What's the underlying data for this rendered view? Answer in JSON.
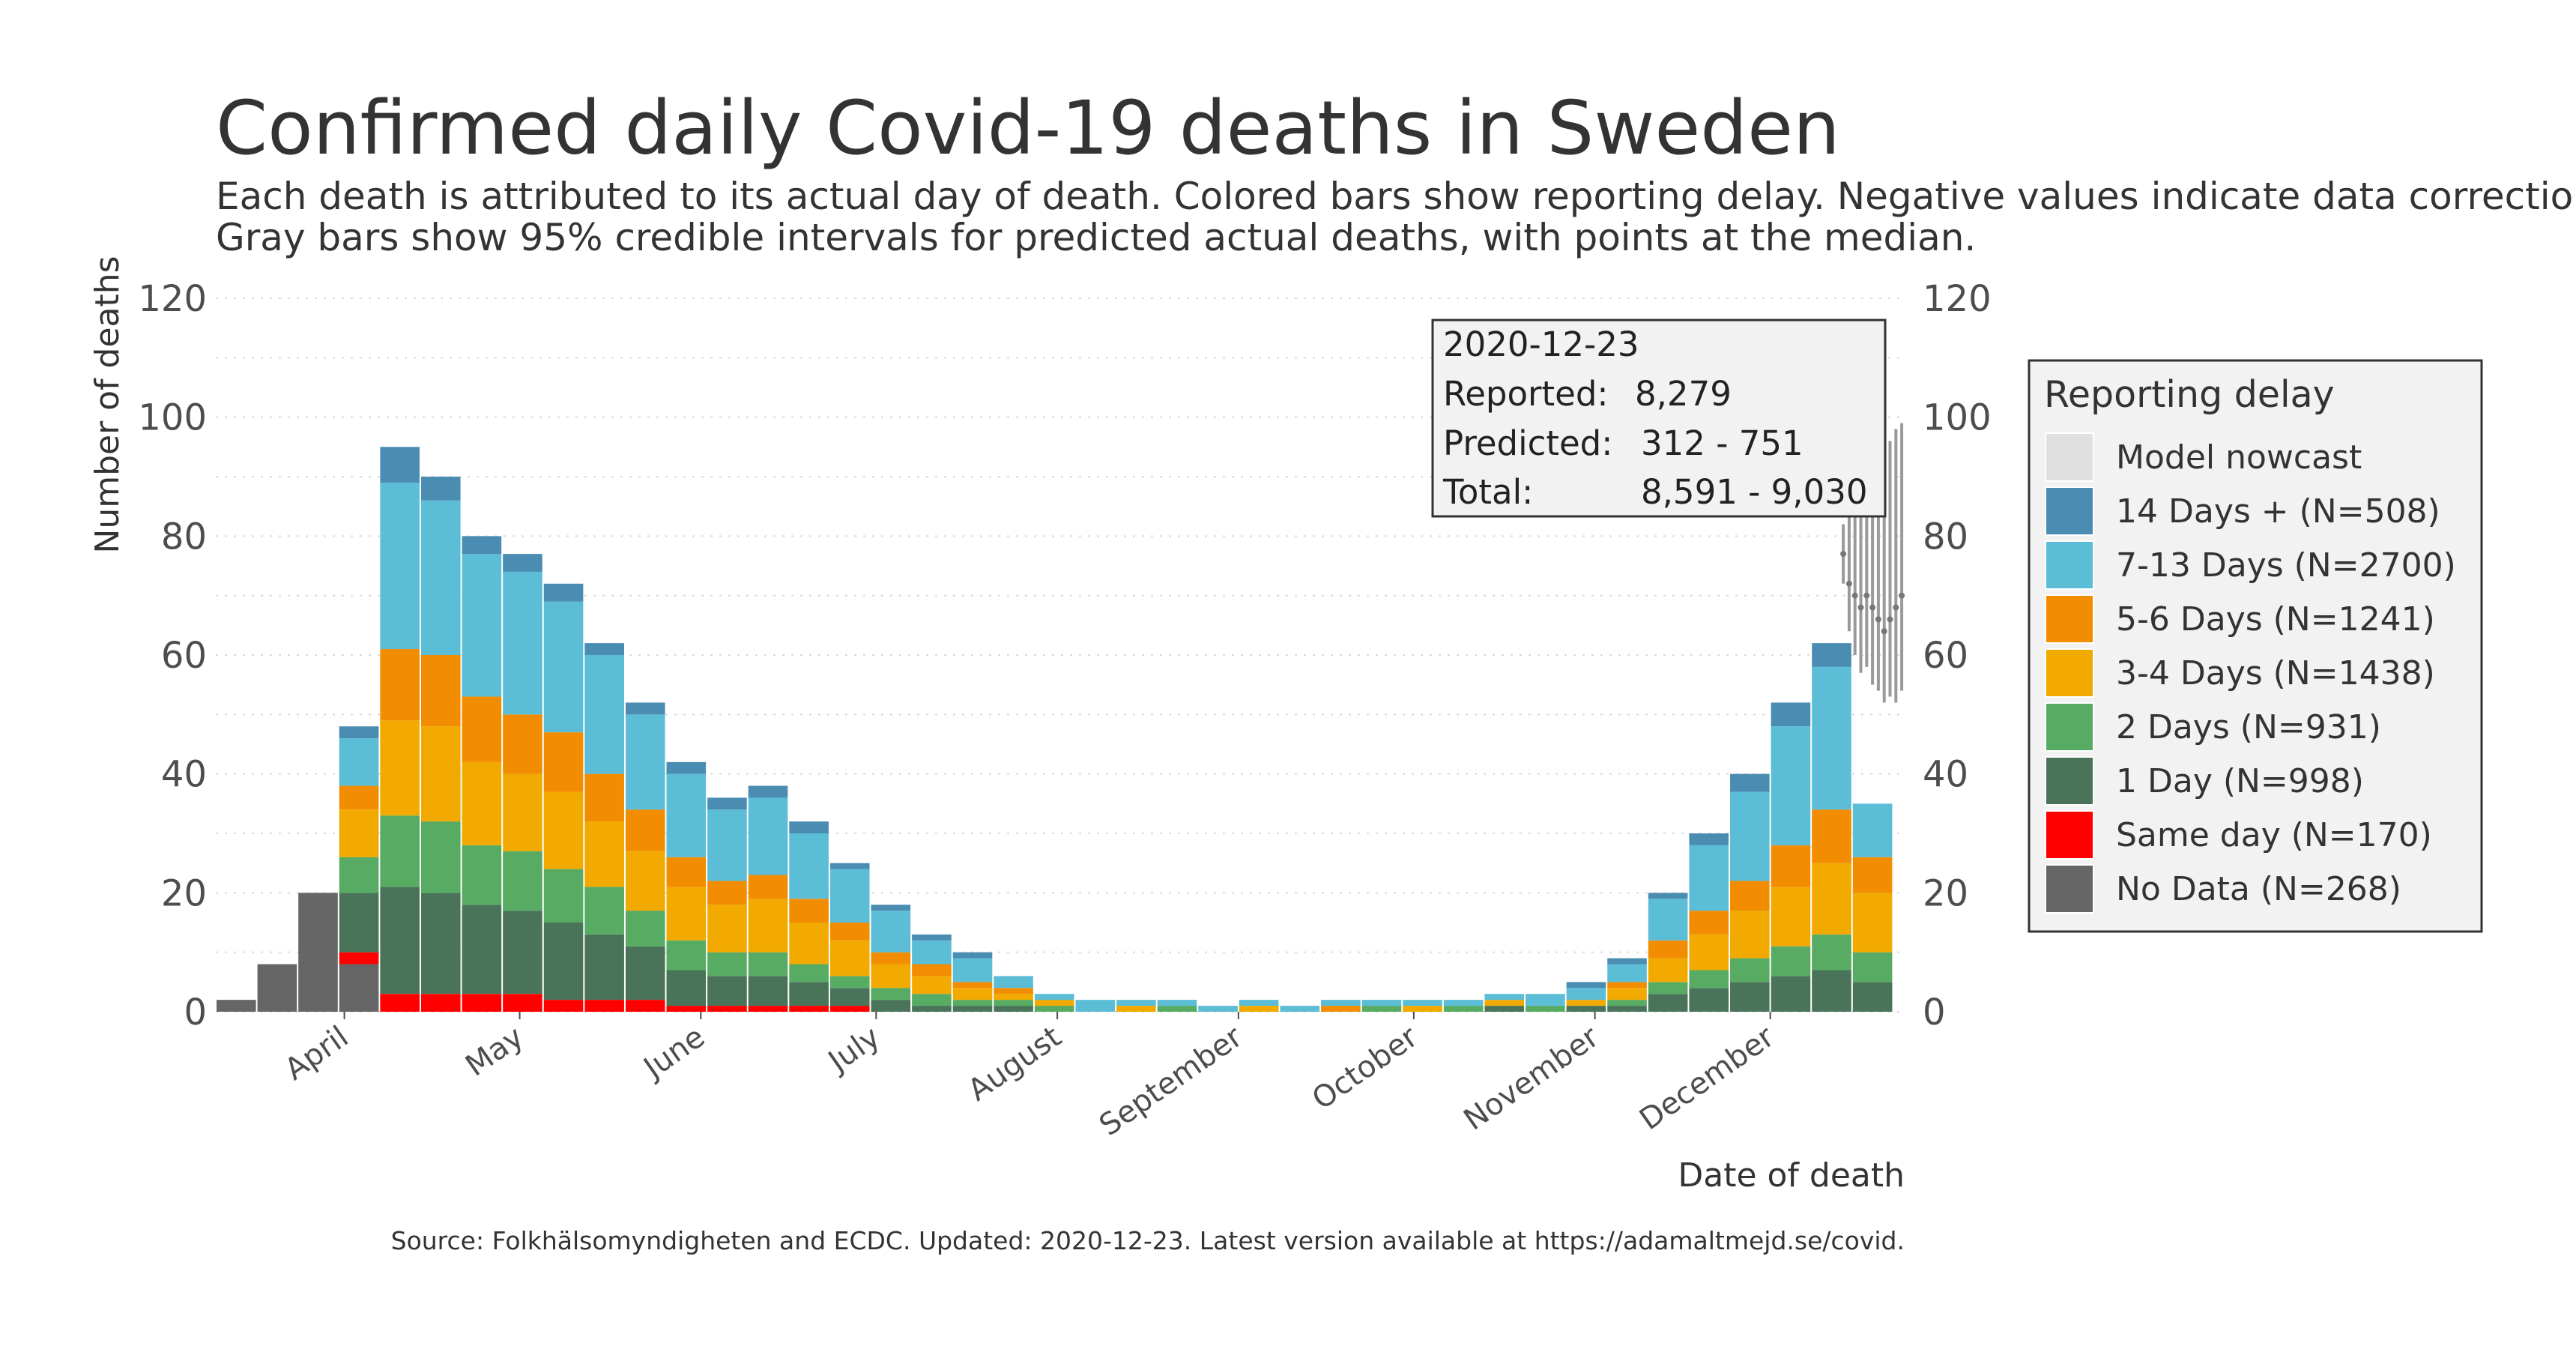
{
  "title": "Confirmed daily Covid-19 deaths in Sweden",
  "subtitle_line1": "Each death is attributed to its actual day of death. Colored bars show reporting delay. Negative values indicate data corrections.",
  "subtitle_line2": "Gray bars show 95% credible intervals for predicted actual deaths, with points at the median.",
  "caption": "Source: Folkhälsomyndigheten and ECDC. Updated: 2020-12-23. Latest version available at https://adamaltmejd.se/covid.",
  "annotation": {
    "date": "2020-12-23",
    "reported_label": "Reported:",
    "reported_value": "8,279",
    "predicted_label": "Predicted:",
    "predicted_value": "312 - 751",
    "total_label": "Total:",
    "total_value": "8,591 - 9,030"
  },
  "legend": {
    "title": "Reporting delay",
    "items": [
      {
        "label": "Model nowcast",
        "color": "#e0e0e0"
      },
      {
        "label": "14 Days + (N=508)",
        "color": "#4a8cb2"
      },
      {
        "label": "7-13 Days (N=2700)",
        "color": "#5bbdd6"
      },
      {
        "label": "5-6 Days (N=1241)",
        "color": "#f28c00"
      },
      {
        "label": "3-4 Days (N=1438)",
        "color": "#f2a900"
      },
      {
        "label": "2 Days (N=931)",
        "color": "#57ab63"
      },
      {
        "label": "1 Day (N=998)",
        "color": "#4a7459"
      },
      {
        "label": "Same day (N=170)",
        "color": "#ff0000"
      },
      {
        "label": "No Data (N=268)",
        "color": "#666666"
      }
    ]
  },
  "chart_data": {
    "type": "bar",
    "stacked": true,
    "xlabel": "Date of death",
    "ylabel": "Number of deaths",
    "ylim": [
      0,
      120
    ],
    "yticks": [
      0,
      20,
      40,
      60,
      80,
      100,
      120
    ],
    "grid": true,
    "secondary_y_axis": true,
    "legend_position": "right",
    "x_start": "2020-03-10",
    "x_end": "2020-12-23",
    "x_tick_labels": [
      "April",
      "May",
      "June",
      "July",
      "August",
      "September",
      "October",
      "November",
      "December"
    ],
    "x_tick_dates": [
      "2020-04-01",
      "2020-05-01",
      "2020-06-01",
      "2020-07-01",
      "2020-08-01",
      "2020-09-01",
      "2020-10-01",
      "2020-11-01",
      "2020-12-01"
    ],
    "series_order": [
      "No Data",
      "Same day",
      "1 Day",
      "2 Days",
      "3-4 Days",
      "5-6 Days",
      "7-13 Days",
      "14 Days +"
    ],
    "weekly_totals": [
      {
        "week_start": "2020-03-10",
        "total": 2,
        "No Data": 2
      },
      {
        "week_start": "2020-03-17",
        "total": 8,
        "No Data": 8
      },
      {
        "week_start": "2020-03-24",
        "total": 20,
        "No Data": 20
      },
      {
        "week_start": "2020-03-31",
        "total": 48,
        "No Data": 8,
        "Same day": 2,
        "1 Day": 10,
        "2 Days": 6,
        "3-4 Days": 8,
        "5-6 Days": 4,
        "7-13 Days": 8,
        "14 Days +": 2
      },
      {
        "week_start": "2020-04-07",
        "total": 95,
        "Same day": 3,
        "1 Day": 18,
        "2 Days": 12,
        "3-4 Days": 16,
        "5-6 Days": 12,
        "7-13 Days": 28,
        "14 Days +": 6
      },
      {
        "week_start": "2020-04-14",
        "total": 90,
        "Same day": 3,
        "1 Day": 17,
        "2 Days": 12,
        "3-4 Days": 16,
        "5-6 Days": 12,
        "7-13 Days": 26,
        "14 Days +": 4
      },
      {
        "week_start": "2020-04-21",
        "total": 80,
        "Same day": 3,
        "1 Day": 15,
        "2 Days": 10,
        "3-4 Days": 14,
        "5-6 Days": 11,
        "7-13 Days": 24,
        "14 Days +": 3
      },
      {
        "week_start": "2020-04-28",
        "total": 77,
        "Same day": 3,
        "1 Day": 14,
        "2 Days": 10,
        "3-4 Days": 13,
        "5-6 Days": 10,
        "7-13 Days": 24,
        "14 Days +": 3
      },
      {
        "week_start": "2020-05-05",
        "total": 72,
        "Same day": 2,
        "1 Day": 13,
        "2 Days": 9,
        "3-4 Days": 13,
        "5-6 Days": 10,
        "7-13 Days": 22,
        "14 Days +": 3
      },
      {
        "week_start": "2020-05-12",
        "total": 62,
        "Same day": 2,
        "1 Day": 11,
        "2 Days": 8,
        "3-4 Days": 11,
        "5-6 Days": 8,
        "7-13 Days": 20,
        "14 Days +": 2
      },
      {
        "week_start": "2020-05-19",
        "total": 52,
        "Same day": 2,
        "1 Day": 9,
        "2 Days": 6,
        "3-4 Days": 10,
        "5-6 Days": 7,
        "7-13 Days": 16,
        "14 Days +": 2
      },
      {
        "week_start": "2020-05-26",
        "total": 42,
        "Same day": 1,
        "1 Day": 6,
        "2 Days": 5,
        "3-4 Days": 9,
        "5-6 Days": 5,
        "7-13 Days": 14,
        "14 Days +": 2
      },
      {
        "week_start": "2020-06-02",
        "total": 36,
        "Same day": 1,
        "1 Day": 5,
        "2 Days": 4,
        "3-4 Days": 8,
        "5-6 Days": 4,
        "7-13 Days": 12,
        "14 Days +": 2
      },
      {
        "week_start": "2020-06-09",
        "total": 38,
        "Same day": 1,
        "1 Day": 5,
        "2 Days": 4,
        "3-4 Days": 9,
        "5-6 Days": 4,
        "7-13 Days": 13,
        "14 Days +": 2
      },
      {
        "week_start": "2020-06-16",
        "total": 32,
        "Same day": 1,
        "1 Day": 4,
        "2 Days": 3,
        "3-4 Days": 7,
        "5-6 Days": 4,
        "7-13 Days": 11,
        "14 Days +": 2
      },
      {
        "week_start": "2020-06-23",
        "total": 25,
        "Same day": 1,
        "1 Day": 3,
        "2 Days": 2,
        "3-4 Days": 6,
        "5-6 Days": 3,
        "7-13 Days": 9,
        "14 Days +": 1
      },
      {
        "week_start": "2020-06-30",
        "total": 18,
        "1 Day": 2,
        "2 Days": 2,
        "3-4 Days": 4,
        "5-6 Days": 2,
        "7-13 Days": 7,
        "14 Days +": 1
      },
      {
        "week_start": "2020-07-07",
        "total": 13,
        "1 Day": 1,
        "2 Days": 2,
        "3-4 Days": 3,
        "5-6 Days": 2,
        "7-13 Days": 4,
        "14 Days +": 1
      },
      {
        "week_start": "2020-07-14",
        "total": 10,
        "1 Day": 1,
        "2 Days": 1,
        "3-4 Days": 2,
        "5-6 Days": 1,
        "7-13 Days": 4,
        "14 Days +": 1
      },
      {
        "week_start": "2020-07-21",
        "total": 6,
        "1 Day": 1,
        "2 Days": 1,
        "3-4 Days": 1,
        "5-6 Days": 1,
        "7-13 Days": 2
      },
      {
        "week_start": "2020-07-28",
        "total": 3,
        "2 Days": 1,
        "3-4 Days": 1,
        "7-13 Days": 1
      },
      {
        "week_start": "2020-08-04",
        "total": 2,
        "7-13 Days": 2
      },
      {
        "week_start": "2020-08-11",
        "total": 2,
        "3-4 Days": 1,
        "7-13 Days": 1
      },
      {
        "week_start": "2020-08-18",
        "total": 2,
        "2 Days": 1,
        "7-13 Days": 1
      },
      {
        "week_start": "2020-08-25",
        "total": 1,
        "7-13 Days": 1
      },
      {
        "week_start": "2020-09-01",
        "total": 2,
        "3-4 Days": 1,
        "7-13 Days": 1
      },
      {
        "week_start": "2020-09-08",
        "total": 1,
        "7-13 Days": 1
      },
      {
        "week_start": "2020-09-15",
        "total": 2,
        "5-6 Days": 1,
        "7-13 Days": 1
      },
      {
        "week_start": "2020-09-22",
        "total": 2,
        "2 Days": 1,
        "7-13 Days": 1
      },
      {
        "week_start": "2020-09-29",
        "total": 2,
        "3-4 Days": 1,
        "7-13 Days": 1
      },
      {
        "week_start": "2020-10-06",
        "total": 2,
        "2 Days": 1,
        "7-13 Days": 1
      },
      {
        "week_start": "2020-10-13",
        "total": 3,
        "1 Day": 1,
        "3-4 Days": 1,
        "7-13 Days": 1
      },
      {
        "week_start": "2020-10-20",
        "total": 3,
        "2 Days": 1,
        "7-13 Days": 2
      },
      {
        "week_start": "2020-10-27",
        "total": 5,
        "1 Day": 1,
        "3-4 Days": 1,
        "7-13 Days": 2,
        "14 Days +": 1
      },
      {
        "week_start": "2020-11-03",
        "total": 9,
        "1 Day": 1,
        "2 Days": 1,
        "3-4 Days": 2,
        "5-6 Days": 1,
        "7-13 Days": 3,
        "14 Days +": 1
      },
      {
        "week_start": "2020-11-10",
        "total": 20,
        "1 Day": 3,
        "2 Days": 2,
        "3-4 Days": 4,
        "5-6 Days": 3,
        "7-13 Days": 7,
        "14 Days +": 1
      },
      {
        "week_start": "2020-11-17",
        "total": 30,
        "1 Day": 4,
        "2 Days": 3,
        "3-4 Days": 6,
        "5-6 Days": 4,
        "7-13 Days": 11,
        "14 Days +": 2
      },
      {
        "week_start": "2020-11-24",
        "total": 40,
        "1 Day": 5,
        "2 Days": 4,
        "3-4 Days": 8,
        "5-6 Days": 5,
        "7-13 Days": 15,
        "14 Days +": 3
      },
      {
        "week_start": "2020-12-01",
        "total": 52,
        "1 Day": 6,
        "2 Days": 5,
        "3-4 Days": 10,
        "5-6 Days": 7,
        "7-13 Days": 20,
        "14 Days +": 4
      },
      {
        "week_start": "2020-12-08",
        "total": 62,
        "1 Day": 7,
        "2 Days": 6,
        "3-4 Days": 12,
        "5-6 Days": 9,
        "7-13 Days": 24,
        "14 Days +": 4
      },
      {
        "week_start": "2020-12-15",
        "total": 35,
        "1 Day": 5,
        "2 Days": 5,
        "3-4 Days": 10,
        "5-6 Days": 6,
        "7-13 Days": 9
      }
    ],
    "nowcast_intervals": [
      {
        "date": "2020-12-13",
        "median": 77,
        "low": 72,
        "high": 82
      },
      {
        "date": "2020-12-14",
        "median": 72,
        "low": 64,
        "high": 84
      },
      {
        "date": "2020-12-15",
        "median": 70,
        "low": 60,
        "high": 86
      },
      {
        "date": "2020-12-16",
        "median": 68,
        "low": 57,
        "high": 88
      },
      {
        "date": "2020-12-17",
        "median": 70,
        "low": 58,
        "high": 90
      },
      {
        "date": "2020-12-18",
        "median": 68,
        "low": 55,
        "high": 92
      },
      {
        "date": "2020-12-19",
        "median": 66,
        "low": 54,
        "high": 90
      },
      {
        "date": "2020-12-20",
        "median": 64,
        "low": 52,
        "high": 94
      },
      {
        "date": "2020-12-21",
        "median": 66,
        "low": 53,
        "high": 96
      },
      {
        "date": "2020-12-22",
        "median": 68,
        "low": 52,
        "high": 98
      },
      {
        "date": "2020-12-23",
        "median": 70,
        "low": 54,
        "high": 99
      }
    ]
  }
}
